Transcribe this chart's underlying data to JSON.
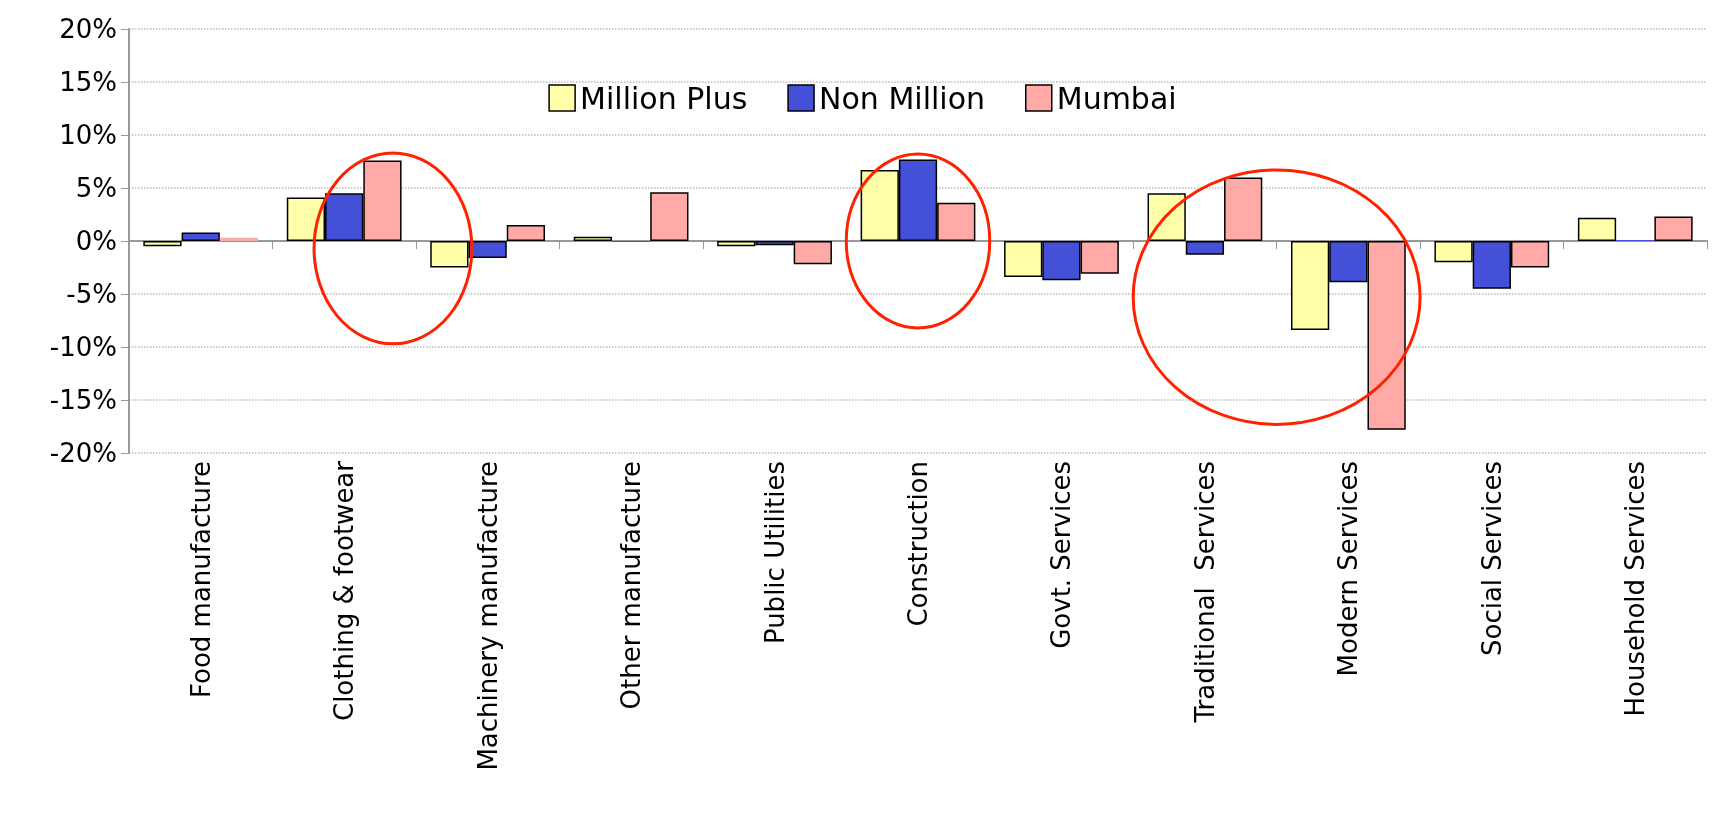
{
  "chart_data": {
    "type": "bar",
    "categories": [
      "Food manufacture",
      "Clothing & footwear",
      "Machinery manufacture",
      "Other manufacture",
      "Public Utilities",
      "Construction",
      "Govt. Services",
      "Traditional  Services",
      "Modern Services",
      "Social Services",
      "Household Services"
    ],
    "series": [
      {
        "name": "Million Plus",
        "color": "#ffffaa",
        "values": [
          -0.5,
          4.1,
          -2.5,
          0.4,
          -0.5,
          6.7,
          -3.4,
          4.5,
          -8.4,
          -2.0,
          2.2
        ]
      },
      {
        "name": "Non Million",
        "color": "#4450d8",
        "values": [
          0.8,
          4.5,
          -1.6,
          -0.1,
          -0.4,
          7.7,
          -3.7,
          -1.3,
          -3.9,
          -4.5,
          0.1
        ]
      },
      {
        "name": "Mumbai",
        "color": "#ffaaa6",
        "values": [
          0.3,
          7.6,
          1.5,
          4.6,
          -2.2,
          3.6,
          -3.1,
          6.0,
          -17.8,
          -2.5,
          2.3
        ]
      }
    ],
    "ylim": [
      -20,
      20
    ],
    "yticks": [
      {
        "value": -20,
        "label": "-20%"
      },
      {
        "value": -15,
        "label": "-15%"
      },
      {
        "value": -10,
        "label": "-10%"
      },
      {
        "value": -5,
        "label": "-5%"
      },
      {
        "value": 0,
        "label": "0%"
      },
      {
        "value": 5,
        "label": "5%"
      },
      {
        "value": 10,
        "label": "10%"
      },
      {
        "value": 15,
        "label": "15%"
      },
      {
        "value": 20,
        "label": "20%"
      }
    ],
    "grid": "y",
    "legend": "top"
  }
}
